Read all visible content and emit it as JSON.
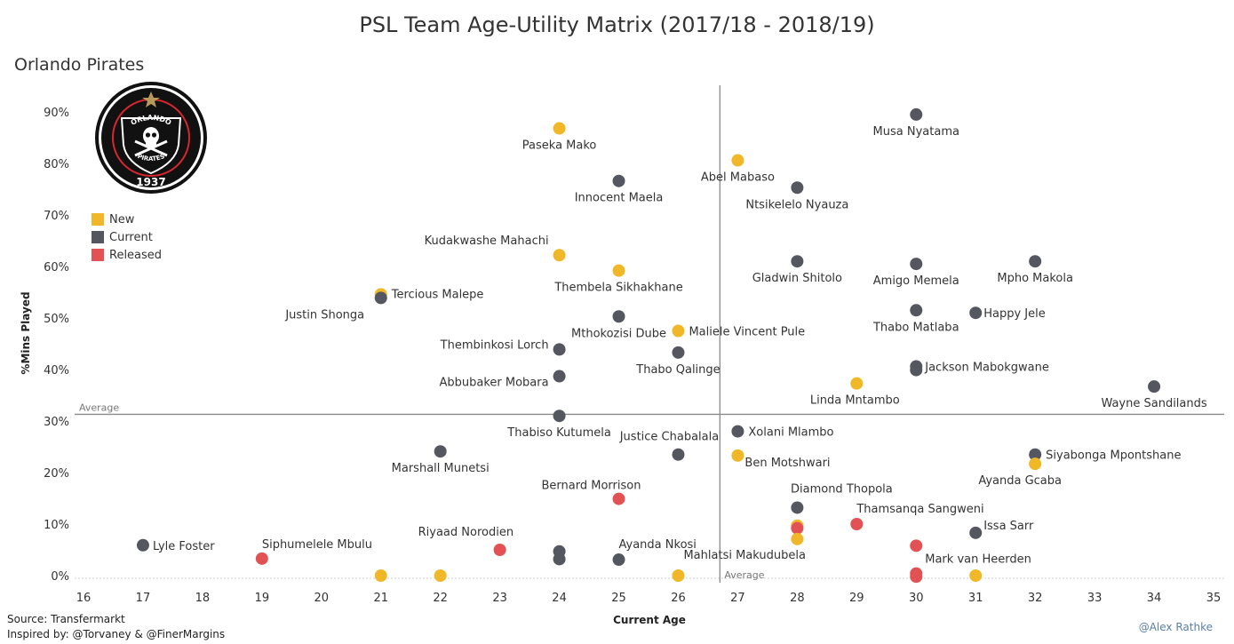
{
  "title": "PSL Team Age-Utility Matrix (2017/18 - 2018/19)",
  "subtitle": "Orlando Pirates",
  "footer": {
    "source": "Source: Transfermarkt",
    "inspired": "Inspired by: @Torvaney & @FinerMargins",
    "credit": "@Alex Rathke"
  },
  "logo": {
    "top_text": "ORLANDO",
    "bottom_text": "PIRATES",
    "year": "1937"
  },
  "colors": {
    "New": "#f0b828",
    "Current": "#545760",
    "Released": "#e25255"
  },
  "chart_data": {
    "type": "scatter",
    "xlabel": "Current Age",
    "ylabel": "%Mins Played",
    "xlim": [
      16,
      35
    ],
    "ylim": [
      -1,
      95
    ],
    "x_ticks": [
      16,
      17,
      18,
      19,
      20,
      21,
      22,
      23,
      24,
      25,
      26,
      27,
      28,
      29,
      30,
      31,
      32,
      33,
      34,
      35
    ],
    "y_ticks": [
      {
        "v": 0,
        "label": "0%"
      },
      {
        "v": 10,
        "label": "10%"
      },
      {
        "v": 20,
        "label": "20%"
      },
      {
        "v": 30,
        "label": "30%"
      },
      {
        "v": 40,
        "label": "40%"
      },
      {
        "v": 50,
        "label": "50%"
      },
      {
        "v": 60,
        "label": "60%"
      },
      {
        "v": 70,
        "label": "70%"
      },
      {
        "v": 80,
        "label": "80%"
      },
      {
        "v": 90,
        "label": "90%"
      }
    ],
    "avg_x": 26.7,
    "avg_y": 31.3,
    "avg_label": "Average",
    "legend": {
      "position": "upper-left",
      "entries": [
        "New",
        "Current",
        "Released"
      ]
    },
    "points": [
      {
        "name": "Paseka Mako",
        "age": 24,
        "pct": 86.8,
        "status": "New",
        "lx": 0,
        "ly": 23,
        "anchor": "middle"
      },
      {
        "name": "Musa Nyatama",
        "age": 30,
        "pct": 89.5,
        "status": "Current",
        "lx": 0,
        "ly": 23,
        "anchor": "middle"
      },
      {
        "name": "Abel Mabaso",
        "age": 27,
        "pct": 80.6,
        "status": "New",
        "lx": 0,
        "ly": 23,
        "anchor": "middle"
      },
      {
        "name": "Innocent Maela",
        "age": 25,
        "pct": 76.6,
        "status": "Current",
        "lx": 0,
        "ly": 23,
        "anchor": "middle"
      },
      {
        "name": "Ntsikelelo Nyauza",
        "age": 28,
        "pct": 75.3,
        "status": "Current",
        "lx": 0,
        "ly": 23,
        "anchor": "middle"
      },
      {
        "name": "Kudakwashe Mahachi",
        "age": 24,
        "pct": 62.2,
        "status": "New",
        "lx": -12,
        "ly": -12,
        "anchor": "end"
      },
      {
        "name": "Thembela Sikhakhane",
        "age": 25,
        "pct": 59.2,
        "status": "New",
        "lx": 0,
        "ly": 23,
        "anchor": "middle"
      },
      {
        "name": "Gladwin Shitolo",
        "age": 28,
        "pct": 61.0,
        "status": "Current",
        "lx": 0,
        "ly": 23,
        "anchor": "middle"
      },
      {
        "name": "Amigo Memela",
        "age": 30,
        "pct": 60.5,
        "status": "Current",
        "lx": 0,
        "ly": 23,
        "anchor": "middle"
      },
      {
        "name": "Mpho Makola",
        "age": 32,
        "pct": 61.0,
        "status": "Current",
        "lx": 0,
        "ly": 23,
        "anchor": "middle"
      },
      {
        "name": "Tercious Malepe",
        "age": 21,
        "pct": 54.6,
        "status": "New",
        "lx": 12,
        "ly": 4,
        "anchor": "start"
      },
      {
        "name": "Justin Shonga",
        "age": 21,
        "pct": 53.9,
        "status": "Current",
        "lx": -63,
        "ly": 23,
        "anchor": "middle"
      },
      {
        "name": "Thabo Matlaba",
        "age": 30,
        "pct": 51.5,
        "status": "Current",
        "lx": 0,
        "ly": 23,
        "anchor": "middle"
      },
      {
        "name": "Happy Jele",
        "age": 31,
        "pct": 51.0,
        "status": "Current",
        "lx": 9,
        "ly": 5,
        "anchor": "start"
      },
      {
        "name": "Mthokozisi Dube",
        "age": 25,
        "pct": 50.3,
        "status": "Current",
        "lx": 0,
        "ly": 23,
        "anchor": "middle"
      },
      {
        "name": "Maliele Vincent Pule",
        "age": 26,
        "pct": 47.5,
        "status": "New",
        "lx": 12,
        "ly": 5,
        "anchor": "start"
      },
      {
        "name": "Thembinkosi Lorch",
        "age": 24,
        "pct": 43.9,
        "status": "Current",
        "lx": -12,
        "ly": -1,
        "anchor": "end"
      },
      {
        "name": "Thabo Qalinge",
        "age": 26,
        "pct": 43.3,
        "status": "Current",
        "lx": 0,
        "ly": 23,
        "anchor": "middle"
      },
      {
        "name": "Jackson Mabokgwane",
        "age": 30,
        "pct": 40.6,
        "status": "Current",
        "lx": 10,
        "ly": 5,
        "anchor": "start"
      },
      {
        "name": "",
        "age": 30,
        "pct": 39.9,
        "status": "Current",
        "lx": 0,
        "ly": 0,
        "anchor": "middle"
      },
      {
        "name": "Abbubaker Mobara",
        "age": 24,
        "pct": 38.7,
        "status": "Current",
        "lx": -12,
        "ly": 11,
        "anchor": "end"
      },
      {
        "name": "Linda Mntambo",
        "age": 29,
        "pct": 37.3,
        "status": "New",
        "lx": -2,
        "ly": 23,
        "anchor": "middle"
      },
      {
        "name": "Wayne Sandilands",
        "age": 34,
        "pct": 36.7,
        "status": "Current",
        "lx": 0,
        "ly": 23,
        "anchor": "middle"
      },
      {
        "name": "Thabiso Kutumela",
        "age": 24,
        "pct": 31.0,
        "status": "Current",
        "lx": 0,
        "ly": 23,
        "anchor": "middle"
      },
      {
        "name": "Xolani Mlambo",
        "age": 27,
        "pct": 28.0,
        "status": "Current",
        "lx": 12,
        "ly": 5,
        "anchor": "start"
      },
      {
        "name": "Justice Chabalala",
        "age": 26,
        "pct": 23.5,
        "status": "Current",
        "lx": -10,
        "ly": -16,
        "anchor": "middle"
      },
      {
        "name": "Ben Motshwari",
        "age": 27,
        "pct": 23.3,
        "status": "New",
        "lx": 8,
        "ly": 12,
        "anchor": "start"
      },
      {
        "name": "Marshall Munetsi",
        "age": 22,
        "pct": 24.1,
        "status": "Current",
        "lx": 0,
        "ly": 23,
        "anchor": "middle"
      },
      {
        "name": "Siyabonga Mpontshane",
        "age": 32,
        "pct": 23.5,
        "status": "Current",
        "lx": 12,
        "ly": 5,
        "anchor": "start"
      },
      {
        "name": "Ayanda Gcaba",
        "age": 32,
        "pct": 21.7,
        "status": "New",
        "lx": -17,
        "ly": 23,
        "anchor": "middle"
      },
      {
        "name": "Bernard Morrison",
        "age": 25,
        "pct": 14.9,
        "status": "Released",
        "lx": -87,
        "ly": -11,
        "anchor": "start"
      },
      {
        "name": "Diamond Thopola",
        "age": 28,
        "pct": 13.2,
        "status": "Current",
        "lx": 50,
        "ly": -17,
        "anchor": "middle"
      },
      {
        "name": "Thamsanqa Sangweni",
        "age": 29,
        "pct": 10.0,
        "status": "Released",
        "lx": 0,
        "ly": -13,
        "anchor": "start"
      },
      {
        "name": "",
        "age": 28,
        "pct": 9.7,
        "status": "New",
        "lx": 0,
        "ly": 0,
        "anchor": "middle"
      },
      {
        "name": "",
        "age": 28,
        "pct": 9.2,
        "status": "Released",
        "lx": 0,
        "ly": 0,
        "anchor": "middle"
      },
      {
        "name": "Issa Sarr",
        "age": 31,
        "pct": 8.3,
        "status": "Current",
        "lx": 9,
        "ly": -4,
        "anchor": "start"
      },
      {
        "name": "",
        "age": 28,
        "pct": 7.1,
        "status": "New",
        "lx": 0,
        "ly": 0,
        "anchor": "middle"
      },
      {
        "name": "Lyle Foster",
        "age": 17,
        "pct": 5.9,
        "status": "Current",
        "lx": 11,
        "ly": 5,
        "anchor": "start"
      },
      {
        "name": "Siphumelele Mbulu",
        "age": 19,
        "pct": 3.3,
        "status": "Released",
        "lx": 0,
        "ly": -12,
        "anchor": "start"
      },
      {
        "name": "Riyaad Norodien",
        "age": 23,
        "pct": 5.0,
        "status": "Released",
        "lx": -92,
        "ly": -16,
        "anchor": "start"
      },
      {
        "name": "",
        "age": 24,
        "pct": 4.7,
        "status": "Current",
        "lx": 0,
        "ly": 0,
        "anchor": "middle"
      },
      {
        "name": "",
        "age": 24,
        "pct": 3.2,
        "status": "Current",
        "lx": 0,
        "ly": 0,
        "anchor": "middle"
      },
      {
        "name": "Ayanda Nkosi",
        "age": 25,
        "pct": 3.1,
        "status": "Current",
        "lx": 0,
        "ly": -13,
        "anchor": "start"
      },
      {
        "name": "Mark van Heerden",
        "age": 30,
        "pct": 5.8,
        "status": "Released",
        "lx": 10,
        "ly": 19,
        "anchor": "start"
      },
      {
        "name": "Mahlatsi Makudubela",
        "age": 26,
        "pct": 0,
        "status": "New",
        "lx": 6,
        "ly": -19,
        "anchor": "start"
      },
      {
        "name": "",
        "age": 21,
        "pct": 0,
        "status": "New",
        "lx": 0,
        "ly": 0,
        "anchor": "middle"
      },
      {
        "name": "",
        "age": 22,
        "pct": 0,
        "status": "New",
        "lx": 0,
        "ly": 0,
        "anchor": "middle"
      },
      {
        "name": "",
        "age": 30,
        "pct": 0.4,
        "status": "Released",
        "lx": 0,
        "ly": 0,
        "anchor": "middle"
      },
      {
        "name": "",
        "age": 30,
        "pct": -0.2,
        "status": "Released",
        "lx": 0,
        "ly": 0,
        "anchor": "middle"
      },
      {
        "name": "",
        "age": 31,
        "pct": 0,
        "status": "New",
        "lx": 0,
        "ly": 0,
        "anchor": "middle"
      }
    ]
  }
}
